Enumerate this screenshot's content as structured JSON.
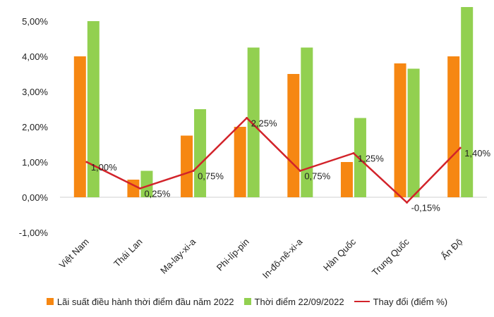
{
  "chart_data": {
    "type": "bar",
    "categories": [
      "Việt Nam",
      "Thái Lan",
      "Ma-lay-xi-a",
      "Phi-líp-pin",
      "In-đô-nê-xi-a",
      "Hàn Quốc",
      "Trung Quốc",
      "Ấn Độ"
    ],
    "series": [
      {
        "name": "Lãi suất điều hành thời điểm đầu năm 2022",
        "type": "bar",
        "color": "#F68712",
        "values": [
          4.0,
          0.5,
          1.75,
          2.0,
          3.5,
          1.0,
          3.8,
          4.0
        ]
      },
      {
        "name": "Thời điểm 22/09/2022",
        "type": "bar",
        "color": "#92D050",
        "values": [
          5.0,
          0.75,
          2.5,
          4.25,
          4.25,
          2.25,
          3.65,
          5.4
        ]
      },
      {
        "name": "Thay đổi (điểm %)",
        "type": "line",
        "color": "#D2232A",
        "values": [
          1.0,
          0.25,
          0.75,
          2.25,
          0.75,
          1.25,
          -0.15,
          1.4
        ],
        "labels": [
          "1,00%",
          "0,25%",
          "0,75%",
          "2,25%",
          "0,75%",
          "1,25%",
          "-0,15%",
          "1,40%"
        ]
      }
    ],
    "ylim": [
      -1.0,
      5.0
    ],
    "yticks": [
      -1,
      0,
      1,
      2,
      3,
      4,
      5
    ],
    "ytick_labels": [
      "-1,00%",
      "0,00%",
      "1,00%",
      "2,00%",
      "3,00%",
      "4,00%",
      "5,00%"
    ],
    "title": "",
    "xlabel": "",
    "ylabel": "",
    "grid": false,
    "legend_position": "bottom"
  }
}
